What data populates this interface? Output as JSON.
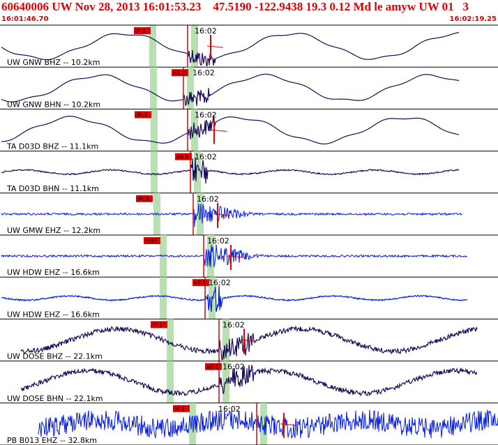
{
  "header": {
    "title": "60640006 UW Nov 28, 2013 16:01:53.23    47.5190 -122.9438 19.3 0.12 Md le amyw UW 01   3",
    "start_time": "16:01:46.70",
    "end_time": "16:02:19.25"
  },
  "colors": {
    "header": "#e00000",
    "border": "#000000",
    "bh_trace": "#1a0a5a",
    "eh_trace": "#0018e6",
    "window_band": "#b8e0b0",
    "pick": "#e00000"
  },
  "traces": [
    {
      "station": "UW GNW BHZ -- 10.2km",
      "color_key": "bh",
      "pick": "iP 1",
      "minute": "16:02",
      "type": "long"
    },
    {
      "station": "UW GNW BHN -- 10.2km",
      "color_key": "bh",
      "pick": "eS 2",
      "minute": "16:02",
      "type": "long"
    },
    {
      "station": "TA D03D BHZ -- 11.1km",
      "color_key": "bh",
      "pick": "iPc0",
      "minute": "16:02",
      "type": "long"
    },
    {
      "station": "TA D03D BHN -- 11.1km",
      "color_key": "bh",
      "pick": "eS 1",
      "minute": "16:02",
      "type": "flat"
    },
    {
      "station": "UW GMW EHZ -- 12.2km",
      "color_key": "eh",
      "pick": "iPc0",
      "minute": "16:02",
      "type": "noise"
    },
    {
      "station": "UW HDW EHZ -- 16.6km",
      "color_key": "eh",
      "pick": "iPd0",
      "minute": "16:02",
      "type": "noise"
    },
    {
      "station": "UW HDW EHZ -- 16.6km",
      "color_key": "eh",
      "pick": "eS 1",
      "minute": "16:02",
      "type": "flat"
    },
    {
      "station": "UW DOSE BHZ -- 22.1km",
      "color_key": "bh",
      "pick": "iP 1",
      "minute": "16:02",
      "type": "wavy"
    },
    {
      "station": "UW DOSE BHN -- 22.1km",
      "color_key": "bh",
      "pick": "eS 1",
      "minute": "16:02",
      "type": "wavy"
    },
    {
      "station": "PB B013 EHZ -- 32.8km",
      "color_key": "eh",
      "pick": "iP 1",
      "minute": "16:02",
      "type": "dense"
    }
  ]
}
